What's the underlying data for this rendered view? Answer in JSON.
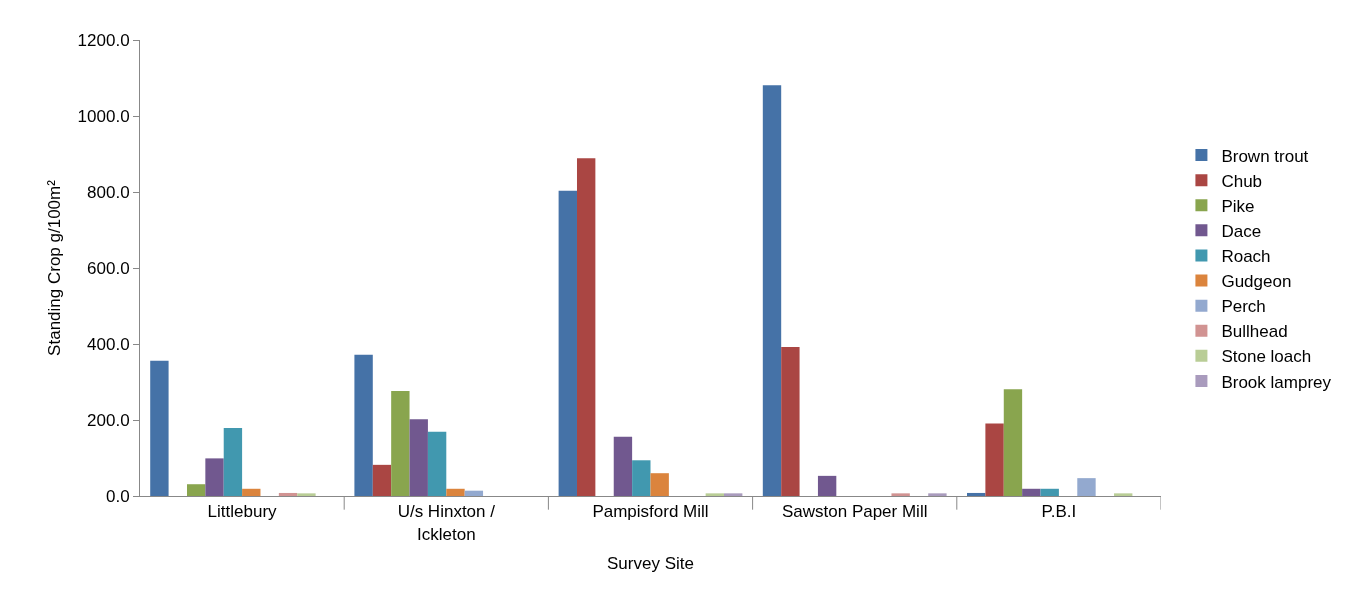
{
  "chart_data": {
    "type": "bar",
    "xlabel": "Survey Site",
    "ylabel": "Standing Crop g/100m²",
    "categories": [
      "Littlebury",
      "U/s Hinxton / Ickleton",
      "Pampisford Mill",
      "Sawston Paper Mill",
      "P.B.I"
    ],
    "series": [
      {
        "name": "Brown trout",
        "color": "#4572a7",
        "values": [
          356,
          372,
          803,
          1081,
          8
        ]
      },
      {
        "name": "Chub",
        "color": "#aa4643",
        "values": [
          0,
          82,
          889,
          392,
          191
        ]
      },
      {
        "name": "Pike",
        "color": "#89a54e",
        "values": [
          31,
          276,
          0,
          0,
          281
        ]
      },
      {
        "name": "Dace",
        "color": "#71588f",
        "values": [
          99,
          202,
          156,
          53,
          19
        ]
      },
      {
        "name": "Roach",
        "color": "#4198af",
        "values": [
          179,
          169,
          94,
          0,
          19
        ]
      },
      {
        "name": "Gudgeon",
        "color": "#db843d",
        "values": [
          19,
          19,
          60,
          0,
          0
        ]
      },
      {
        "name": "Perch",
        "color": "#93a9cf",
        "values": [
          0,
          14,
          0,
          0,
          47
        ]
      },
      {
        "name": "Bullhead",
        "color": "#d19392",
        "values": [
          8,
          0,
          0,
          7,
          0
        ]
      },
      {
        "name": "Stone loach",
        "color": "#b9cd96",
        "values": [
          7,
          0,
          7,
          0,
          7
        ]
      },
      {
        "name": "Brook lamprey",
        "color": "#a99bbd",
        "values": [
          0,
          0,
          7,
          7,
          0
        ]
      }
    ],
    "ylim": [
      0,
      1200
    ],
    "yticks": [
      {
        "value": 0,
        "label": "0.0"
      },
      {
        "value": 200,
        "label": "200.0"
      },
      {
        "value": 400,
        "label": "400.0"
      },
      {
        "value": 600,
        "label": "600.0"
      },
      {
        "value": 800,
        "label": "800.0"
      },
      {
        "value": 1000,
        "label": "1000.0"
      },
      {
        "value": 1200,
        "label": "1200.0"
      }
    ],
    "grid": false,
    "legend": "right"
  }
}
